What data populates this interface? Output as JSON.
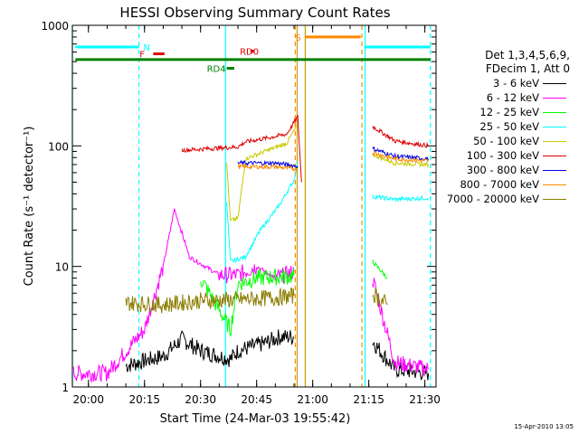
{
  "chart_data": {
    "type": "line",
    "title": "HESSI Observing Summary Count Rates",
    "xlabel": "Start Time (24-Mar-03 19:55:42)",
    "ylabel": "Count Rate (s⁻¹ detector⁻¹)",
    "yscale": "log",
    "ylim": [
      1,
      1000
    ],
    "xlim": [
      "19:55:42",
      "21:33:00"
    ],
    "x_ticks": [
      "20:00",
      "20:15",
      "20:30",
      "20:45",
      "21:00",
      "21:15",
      "21:30"
    ],
    "y_ticks": [
      "1",
      "10",
      "100",
      "1000"
    ],
    "legend": {
      "placement": "right",
      "header_line1": "Det 1,3,4,5,6,9,",
      "header_line2": "FDecim 1, Att 0"
    },
    "series": [
      {
        "name": "3 - 6 keV",
        "color": "#000000",
        "points": [
          [
            "19:56",
            1.4
          ],
          [
            "20:10",
            1.5
          ],
          [
            "20:20",
            1.8
          ],
          [
            "20:25",
            2.5
          ],
          [
            "20:30",
            2.0
          ],
          [
            "20:38",
            1.7
          ],
          [
            "20:40",
            2.0
          ],
          [
            "20:47",
            2.3
          ],
          [
            "20:51",
            2.6
          ],
          [
            "20:55",
            2.6
          ],
          [
            "21:16",
            2.4
          ],
          [
            "21:22",
            1.4
          ],
          [
            "21:31",
            1.3
          ]
        ]
      },
      {
        "name": "6 - 12 keV",
        "color": "#ff00ff",
        "points": [
          [
            "19:56",
            1.3
          ],
          [
            "20:05",
            1.3
          ],
          [
            "20:15",
            3.0
          ],
          [
            "20:20",
            10
          ],
          [
            "20:23",
            30
          ],
          [
            "20:27",
            12
          ],
          [
            "20:35",
            8.5
          ],
          [
            "20:40",
            8.5
          ],
          [
            "20:45",
            10
          ],
          [
            "20:50",
            8
          ],
          [
            "20:55",
            9
          ],
          [
            "21:16",
            8
          ],
          [
            "21:22",
            1.6
          ],
          [
            "21:31",
            1.4
          ]
        ]
      },
      {
        "name": "12 - 25 keV",
        "color": "#00ff00",
        "points": [
          [
            "19:56",
            7.8
          ],
          [
            "20:15",
            7.6
          ],
          [
            "20:30",
            8.0
          ],
          [
            "20:38",
            3.0
          ],
          [
            "20:40",
            7.2
          ],
          [
            "20:45",
            8.0
          ],
          [
            "20:55",
            8.3
          ],
          [
            "21:16",
            11
          ],
          [
            "21:20",
            8
          ],
          [
            "21:31",
            8
          ]
        ]
      },
      {
        "name": "25 - 50 keV",
        "color": "#00ffff",
        "points": [
          [
            "19:56",
            37
          ],
          [
            "20:10",
            34
          ],
          [
            "20:25",
            32
          ],
          [
            "20:37",
            33
          ],
          [
            "20:38",
            11
          ],
          [
            "20:42",
            12
          ],
          [
            "20:46",
            20
          ],
          [
            "20:51",
            32
          ],
          [
            "20:55",
            52
          ],
          [
            "20:56",
            75
          ],
          [
            "21:16",
            38
          ],
          [
            "21:22",
            36
          ],
          [
            "21:31",
            37
          ]
        ]
      },
      {
        "name": "50 - 100 keV",
        "color": "#c8c800",
        "points": [
          [
            "19:56",
            82
          ],
          [
            "20:10",
            78
          ],
          [
            "20:25",
            72
          ],
          [
            "20:37",
            70
          ],
          [
            "20:38",
            24
          ],
          [
            "20:40",
            25
          ],
          [
            "20:42",
            78
          ],
          [
            "20:48",
            92
          ],
          [
            "20:53",
            105
          ],
          [
            "20:56",
            150
          ],
          [
            "21:16",
            85
          ],
          [
            "21:22",
            72
          ],
          [
            "21:31",
            70
          ]
        ]
      },
      {
        "name": "100 - 300 keV",
        "color": "#dd0000",
        "points": [
          [
            "19:56",
            110
          ],
          [
            "20:10",
            102
          ],
          [
            "20:25",
            92
          ],
          [
            "20:35",
            96
          ],
          [
            "20:40",
            98
          ],
          [
            "20:42",
            108
          ],
          [
            "20:47",
            115
          ],
          [
            "20:53",
            125
          ],
          [
            "20:56",
            175
          ],
          [
            "20:57",
            50
          ],
          [
            "21:16",
            145
          ],
          [
            "21:22",
            110
          ],
          [
            "21:31",
            100
          ]
        ]
      },
      {
        "name": "300 - 800 keV",
        "color": "#0000dd",
        "points": [
          [
            "19:56",
            88
          ],
          [
            "20:10",
            82
          ],
          [
            "20:25",
            75
          ],
          [
            "20:40",
            72
          ],
          [
            "20:50",
            72
          ],
          [
            "20:56",
            68
          ],
          [
            "21:16",
            95
          ],
          [
            "21:22",
            82
          ],
          [
            "21:31",
            78
          ]
        ]
      },
      {
        "name": "800 - 7000 keV",
        "color": "#ff8800",
        "points": [
          [
            "19:56",
            85
          ],
          [
            "20:10",
            78
          ],
          [
            "20:25",
            70
          ],
          [
            "20:40",
            67
          ],
          [
            "20:50",
            67
          ],
          [
            "20:56",
            64
          ],
          [
            "21:16",
            88
          ],
          [
            "21:22",
            78
          ],
          [
            "21:31",
            75
          ]
        ]
      },
      {
        "name": "7000 - 20000 keV",
        "color": "#8b7d00",
        "points": [
          [
            "19:56",
            7.2
          ],
          [
            "20:10",
            5.0
          ],
          [
            "20:20",
            4.8
          ],
          [
            "20:30",
            5.2
          ],
          [
            "20:40",
            5.3
          ],
          [
            "20:50",
            5.5
          ],
          [
            "20:55",
            5.7
          ],
          [
            "21:16",
            6
          ],
          [
            "21:20",
            4.8
          ],
          [
            "21:31",
            5.0
          ]
        ]
      }
    ],
    "vertical_lines": [
      {
        "x": "19:55:42",
        "color": "#00ffff",
        "style": "solid"
      },
      {
        "x": "20:13:30",
        "color": "#00ffff",
        "style": "dashed"
      },
      {
        "x": "20:36:40",
        "color": "#00ffff",
        "style": "solid"
      },
      {
        "x": "20:55:20",
        "color": "#ff8800",
        "style": "dashed"
      },
      {
        "x": "20:55:50",
        "color": "#c8a000",
        "style": "solid"
      },
      {
        "x": "20:58:00",
        "color": "#c8a000",
        "style": "solid"
      },
      {
        "x": "21:13:10",
        "color": "#ff8800",
        "style": "dashed"
      },
      {
        "x": "21:14:00",
        "color": "#00ffff",
        "style": "solid"
      },
      {
        "x": "21:31:30",
        "color": "#00ffff",
        "style": "dashed"
      }
    ],
    "flags": [
      {
        "label": "N",
        "color": "#00ffff",
        "y": 660,
        "segments": [
          [
            "19:56:30",
            "20:13:30"
          ],
          [
            "21:14:00",
            "21:31:30"
          ]
        ],
        "label_at": "20:14:40"
      },
      {
        "label": "S",
        "color": "#ff8800",
        "y": 800,
        "segments": [
          [
            "20:58:00",
            "21:12:50"
          ]
        ],
        "label_at": "20:55:20"
      },
      {
        "label": "F",
        "color": "#dd0000",
        "y": 580,
        "segments": [
          [
            "20:17:20",
            "20:20:20"
          ]
        ],
        "label_at": "20:13:40"
      },
      {
        "label": "RD0",
        "color": "#dd0000",
        "y": 610,
        "segments": [
          [
            "20:43:20",
            "20:44:20"
          ]
        ],
        "label_at": "20:40:30"
      },
      {
        "label": "RD4",
        "color": "#008000",
        "y": 440,
        "segments": [
          [
            "20:37:00",
            "20:39:00"
          ]
        ],
        "label_at": "20:31:40"
      }
    ],
    "saa_line": {
      "color": "#008000",
      "y": 520,
      "from": "19:56:30",
      "to": "21:31:30"
    }
  },
  "footnote": "15-Apr-2010 13:05"
}
